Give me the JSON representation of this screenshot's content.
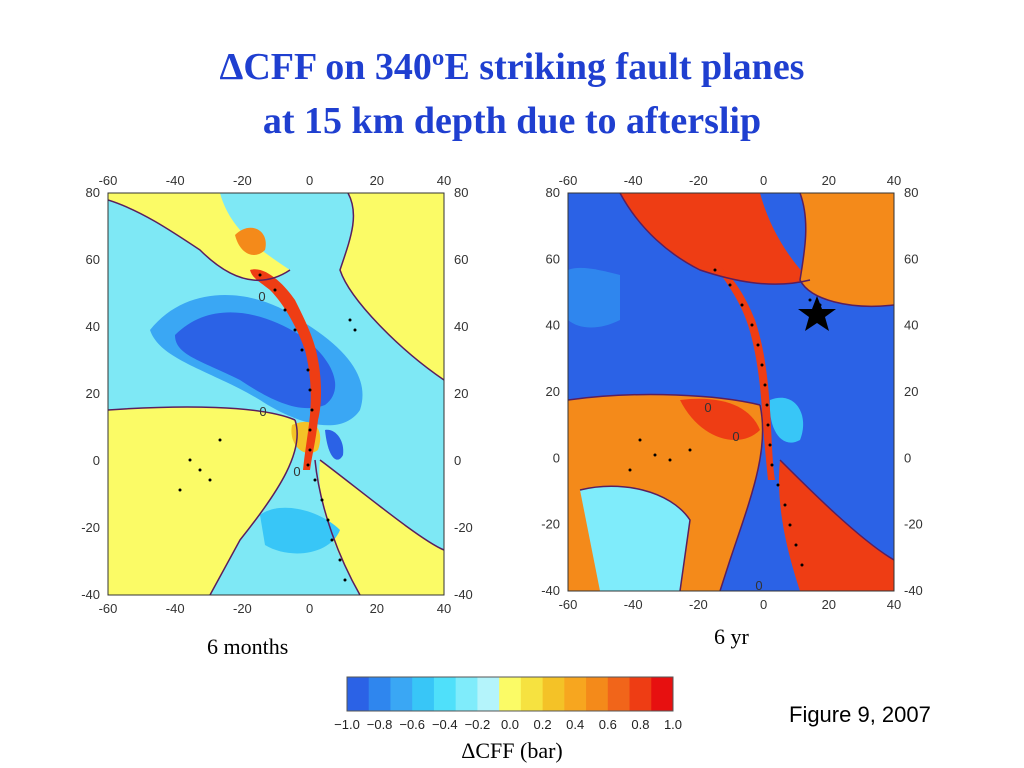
{
  "title": {
    "line1": "ΔCFF on 340ºE striking fault planes",
    "line2": "at 15 km depth due to afterslip"
  },
  "panels": [
    {
      "caption": "6 months",
      "x_ticks": [
        "-60",
        "-40",
        "-20",
        "0",
        "20",
        "40"
      ],
      "y_ticks": [
        "80",
        "60",
        "40",
        "20",
        "0",
        "-20",
        "-40"
      ],
      "contour_labels": [
        "0",
        "0",
        "0"
      ]
    },
    {
      "caption": "6 yr",
      "x_ticks": [
        "-60",
        "-40",
        "-20",
        "0",
        "20",
        "40"
      ],
      "y_ticks": [
        "80",
        "60",
        "40",
        "20",
        "0",
        "-20",
        "-40"
      ],
      "contour_labels": [
        "0",
        "0",
        "0"
      ],
      "marker": "star-icon"
    }
  ],
  "colorbar": {
    "ticks": [
      "−1.0",
      "−0.8",
      "−0.6",
      "−0.4",
      "−0.2",
      "0.0",
      "0.2",
      "0.4",
      "0.6",
      "0.8",
      "1.0"
    ],
    "colors": [
      "#2b62e6",
      "#2f86ee",
      "#3aa7f4",
      "#38c6f7",
      "#4fe0fa",
      "#7fecfb",
      "#b4f4fb",
      "#fbfb66",
      "#f6e240",
      "#f4c227",
      "#f7a61f",
      "#f48a1a",
      "#f1651a",
      "#ee3d14",
      "#e71010"
    ],
    "label": "ΔCFF (bar)"
  },
  "figure_ref": "Figure 9, 2007"
}
